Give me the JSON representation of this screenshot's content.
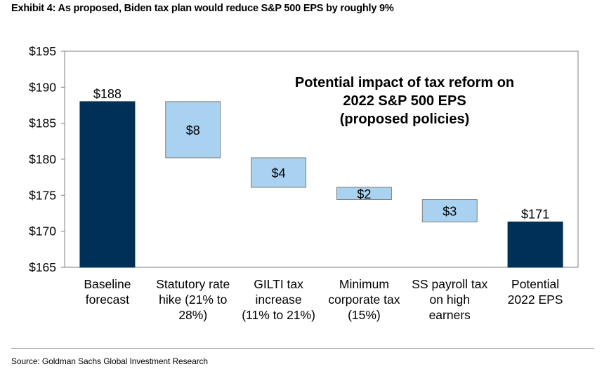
{
  "title": "Exhibit 4: As proposed, Biden tax plan would reduce S&P 500 EPS by roughly 9%",
  "source": "Source: Goldman Sachs Global Investment Research",
  "colors": {
    "total": "#003057",
    "change": "#a9d2f0"
  },
  "chart_data": {
    "type": "bar",
    "subtype": "waterfall",
    "inner_title": [
      "Potential impact of tax reform on",
      "2022 S&P 500 EPS",
      "(proposed policies)"
    ],
    "ylim": [
      165,
      195
    ],
    "yticks": [
      165,
      170,
      175,
      180,
      185,
      190,
      195
    ],
    "ytick_labels": [
      "$165",
      "$170",
      "$175",
      "$180",
      "$185",
      "$190",
      "$195"
    ],
    "bars": [
      {
        "category": [
          "Baseline",
          "forecast"
        ],
        "kind": "total",
        "low": 165,
        "high": 188,
        "label": "$188"
      },
      {
        "category": [
          "Statutory rate",
          "hike (21% to",
          "28%)"
        ],
        "kind": "change",
        "low": 180.2,
        "high": 188,
        "label": "$8"
      },
      {
        "category": [
          "GILTI tax",
          "increase",
          "(11% to 21%)"
        ],
        "kind": "change",
        "low": 176.1,
        "high": 180.2,
        "label": "$4"
      },
      {
        "category": [
          "Minimum",
          "corporate tax",
          "(15%)"
        ],
        "kind": "change",
        "low": 174.4,
        "high": 176.1,
        "label": "$2"
      },
      {
        "category": [
          "SS payroll tax",
          "on high",
          "earners"
        ],
        "kind": "change",
        "low": 171.3,
        "high": 174.4,
        "label": "$3"
      },
      {
        "category": [
          "Potential",
          "2022 EPS"
        ],
        "kind": "total",
        "low": 165,
        "high": 171.3,
        "label": "$171"
      }
    ]
  }
}
